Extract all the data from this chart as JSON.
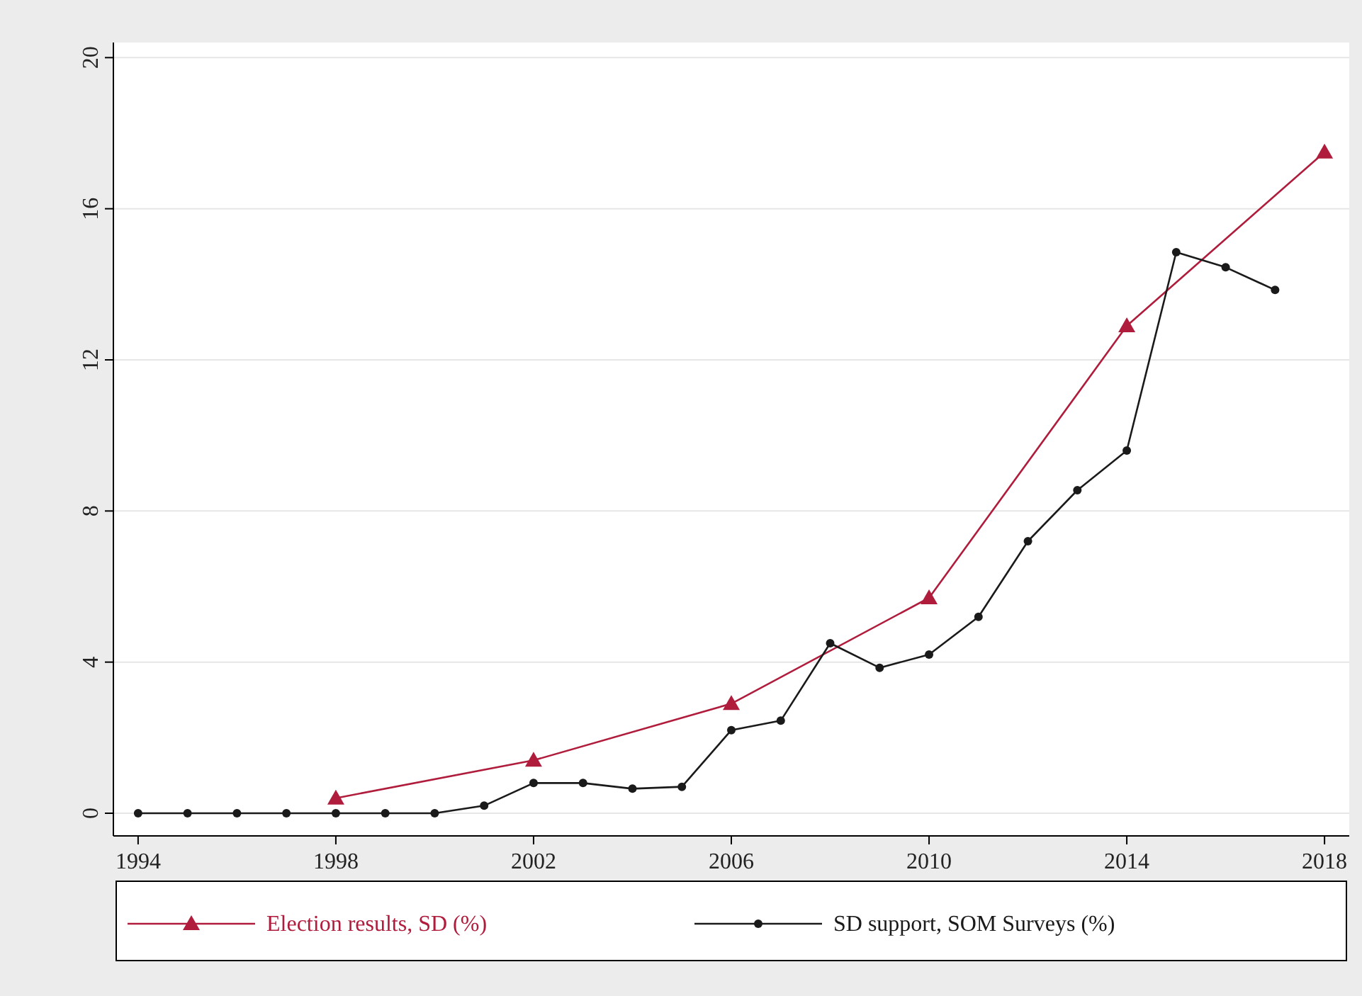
{
  "chart_data": {
    "type": "line",
    "series": [
      {
        "name": "Election results, SD (%)",
        "color": "#b01c3c",
        "marker": "triangle",
        "x": [
          1998,
          2002,
          2006,
          2010,
          2014,
          2018
        ],
        "values": [
          0.4,
          1.4,
          2.9,
          5.7,
          12.9,
          17.5
        ]
      },
      {
        "name": "SD support, SOM Surveys (%)",
        "color": "#1a1a1a",
        "marker": "circle",
        "x": [
          1994,
          1995,
          1996,
          1997,
          1998,
          1999,
          2000,
          2001,
          2002,
          2003,
          2004,
          2005,
          2006,
          2007,
          2008,
          2009,
          2010,
          2011,
          2012,
          2013,
          2014,
          2015,
          2016,
          2017
        ],
        "values": [
          0,
          0,
          0,
          0,
          0,
          0,
          0,
          0.2,
          0.8,
          0.8,
          0.65,
          0.7,
          2.2,
          2.45,
          4.5,
          3.85,
          4.2,
          5.2,
          7.2,
          8.55,
          9.6,
          14.85,
          14.45,
          13.85
        ]
      }
    ],
    "xlim": [
      1993.5,
      2018.5
    ],
    "xticks": [
      1994,
      1998,
      2002,
      2006,
      2010,
      2014,
      2018
    ],
    "ylim": [
      -0.6,
      20.4
    ],
    "yticks": [
      0,
      4,
      8,
      12,
      16,
      20
    ],
    "grid": "y",
    "legend": "bottom",
    "line_style": "solid"
  }
}
